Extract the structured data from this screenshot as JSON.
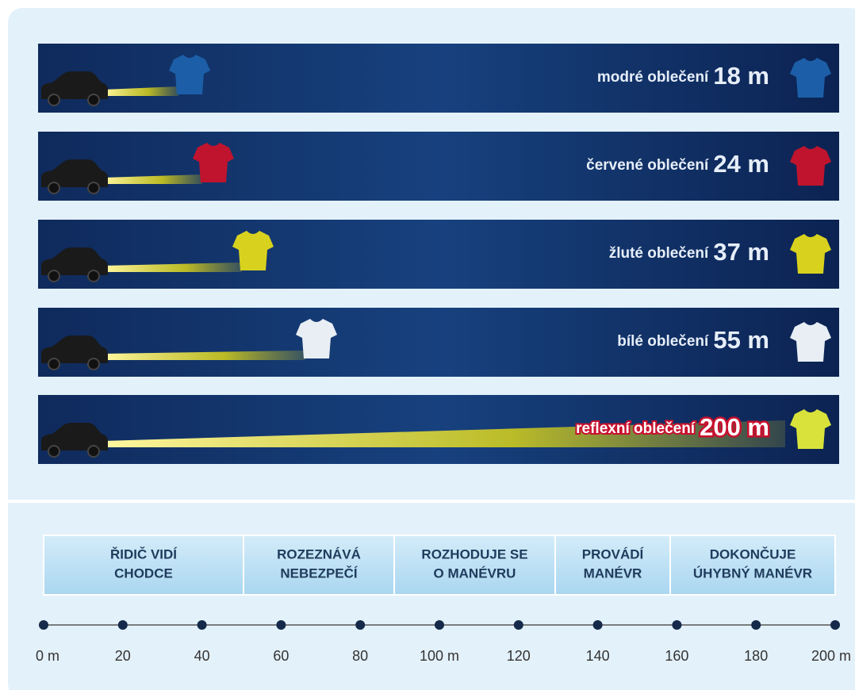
{
  "rows": [
    {
      "label": "modré oblečení",
      "distance": "18 m"
    },
    {
      "label": "červené oblečení",
      "distance": "24 m"
    },
    {
      "label": "žluté oblečení",
      "distance": "37 m"
    },
    {
      "label": "bílé oblečení",
      "distance": "55 m"
    },
    {
      "label": "reflexní oblečení",
      "distance": "200 m"
    }
  ],
  "phases": [
    [
      "ŘIDIČ VIDÍ",
      "CHODCE"
    ],
    [
      "ROZEZNÁVÁ",
      "NEBEZPEČÍ"
    ],
    [
      "ROZHODUJE SE",
      "O MANÉVRU"
    ],
    [
      "PROVÁDÍ",
      "MANÉVR"
    ],
    [
      "DOKONČUJE",
      "ÚHYBNÝ MANÉVR"
    ]
  ],
  "axis": [
    "0 m",
    "20",
    "40",
    "60",
    "80",
    "100 m",
    "120",
    "140",
    "160",
    "180",
    "200 m"
  ]
}
